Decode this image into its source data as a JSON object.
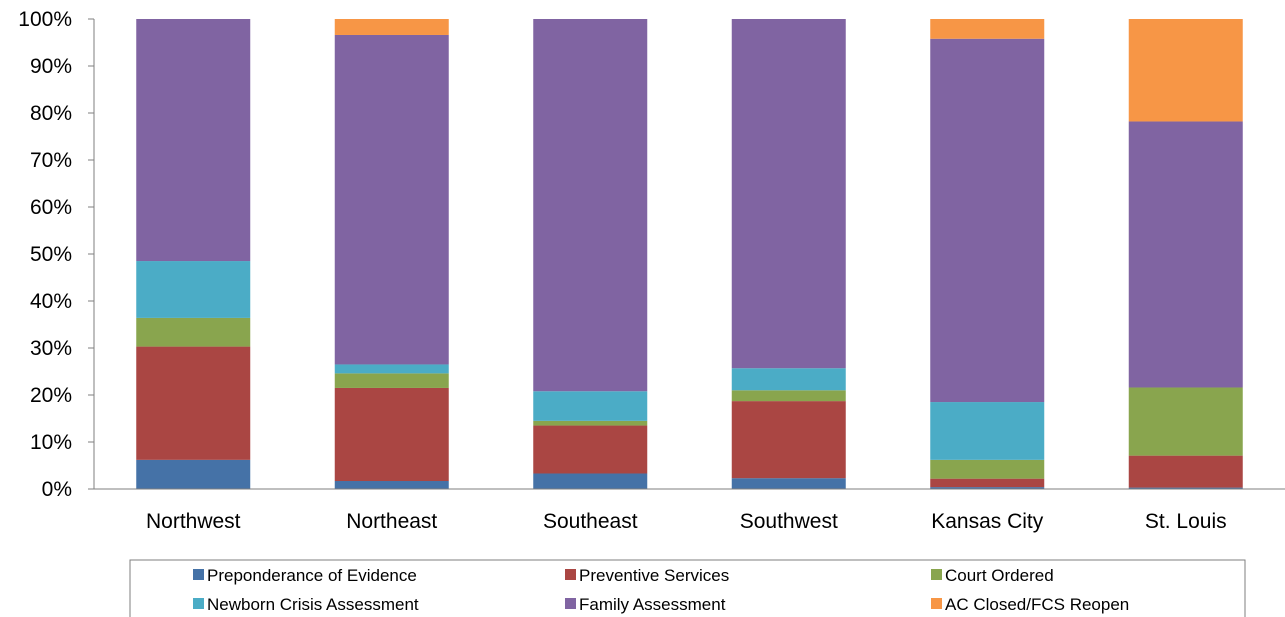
{
  "chart_data": {
    "type": "bar",
    "stacked": true,
    "percent": true,
    "categories": [
      "Northwest",
      "Northeast",
      "Southeast",
      "Southwest",
      "Kansas City",
      "St. Louis"
    ],
    "series": [
      {
        "name": "Preponderance of Evidence",
        "color": "#4572A7",
        "values": [
          6.2,
          1.7,
          3.3,
          2.3,
          0.4,
          0.3
        ]
      },
      {
        "name": "Preventive Services",
        "color": "#AA4643",
        "values": [
          24.1,
          19.8,
          10.2,
          16.4,
          1.8,
          6.8
        ]
      },
      {
        "name": "Court Ordered",
        "color": "#89A54E",
        "values": [
          6.1,
          3.1,
          1.0,
          2.3,
          4.0,
          14.5
        ]
      },
      {
        "name": "Newborn Crisis Assessment",
        "color": "#4BACC6",
        "values": [
          12.1,
          1.9,
          6.3,
          4.7,
          12.3,
          0.0
        ]
      },
      {
        "name": "Family Assessment",
        "color": "#8064A2",
        "values": [
          51.5,
          70.1,
          79.2,
          74.3,
          77.3,
          56.6
        ]
      },
      {
        "name": "AC Closed/FCS Reopen",
        "color": "#F79646",
        "values": [
          0.0,
          3.4,
          0.0,
          0.0,
          4.2,
          21.8
        ]
      }
    ],
    "yticks": [
      "0%",
      "10%",
      "20%",
      "30%",
      "40%",
      "50%",
      "60%",
      "70%",
      "80%",
      "90%",
      "100%"
    ],
    "ylim": [
      0,
      100
    ],
    "grid": false,
    "legend_position": "bottom"
  }
}
